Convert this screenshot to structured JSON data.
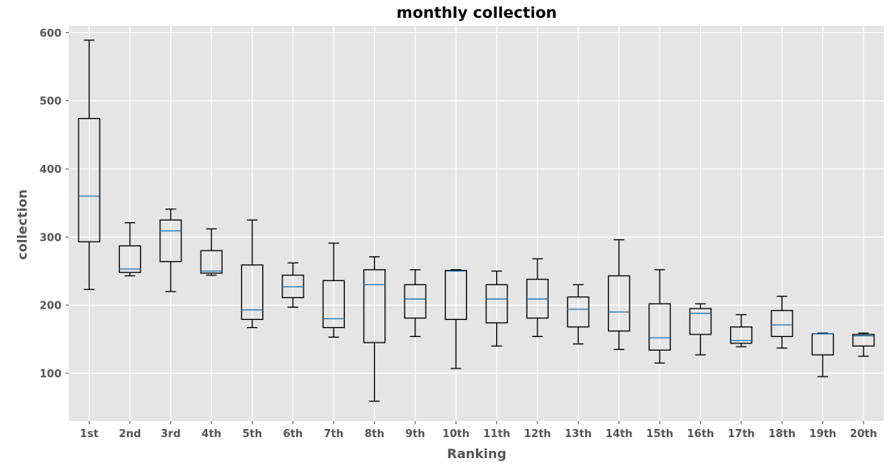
{
  "chart_data": {
    "type": "boxplot",
    "title": "monthly collection",
    "xlabel": "Ranking",
    "ylabel": "collection",
    "ylim": [
      30,
      610
    ],
    "yticks": [
      100,
      200,
      300,
      400,
      500,
      600
    ],
    "grid": true,
    "colors": {
      "background": "#e5e5e5",
      "grid": "#ffffff",
      "box": "#000000",
      "median": "#1f77b4",
      "tick_text": "#555555"
    },
    "categories": [
      "1st",
      "2nd",
      "3rd",
      "4th",
      "5th",
      "6th",
      "7th",
      "8th",
      "9th",
      "10th",
      "11th",
      "12th",
      "13th",
      "14th",
      "15th",
      "16th",
      "17th",
      "18th",
      "19th",
      "20th"
    ],
    "boxes": [
      {
        "whislo": 223,
        "q1": 293,
        "med": 360,
        "q3": 474,
        "whishi": 589
      },
      {
        "whislo": 243,
        "q1": 248,
        "med": 253,
        "q3": 287,
        "whishi": 321
      },
      {
        "whislo": 220,
        "q1": 264,
        "med": 309,
        "q3": 325,
        "whishi": 341
      },
      {
        "whislo": 244,
        "q1": 247,
        "med": 250,
        "q3": 280,
        "whishi": 312
      },
      {
        "whislo": 167,
        "q1": 179,
        "med": 193,
        "q3": 259,
        "whishi": 325
      },
      {
        "whislo": 197,
        "q1": 211,
        "med": 227,
        "q3": 244,
        "whishi": 262
      },
      {
        "whislo": 153,
        "q1": 167,
        "med": 180,
        "q3": 236,
        "whishi": 291
      },
      {
        "whislo": 59,
        "q1": 145,
        "med": 230,
        "q3": 252,
        "whishi": 271
      },
      {
        "whislo": 154,
        "q1": 181,
        "med": 209,
        "q3": 230,
        "whishi": 252
      },
      {
        "whislo": 107,
        "q1": 179,
        "med": 250,
        "q3": 251,
        "whishi": 252
      },
      {
        "whislo": 140,
        "q1": 174,
        "med": 209,
        "q3": 230,
        "whishi": 250
      },
      {
        "whislo": 154,
        "q1": 181,
        "med": 209,
        "q3": 238,
        "whishi": 268
      },
      {
        "whislo": 143,
        "q1": 168,
        "med": 194,
        "q3": 212,
        "whishi": 230
      },
      {
        "whislo": 135,
        "q1": 162,
        "med": 190,
        "q3": 243,
        "whishi": 296
      },
      {
        "whislo": 115,
        "q1": 134,
        "med": 152,
        "q3": 202,
        "whishi": 252
      },
      {
        "whislo": 127,
        "q1": 157,
        "med": 188,
        "q3": 195,
        "whishi": 202
      },
      {
        "whislo": 139,
        "q1": 144,
        "med": 148,
        "q3": 168,
        "whishi": 186
      },
      {
        "whislo": 137,
        "q1": 154,
        "med": 171,
        "q3": 192,
        "whishi": 213
      },
      {
        "whislo": 95,
        "q1": 127,
        "med": 158,
        "q3": 158,
        "whishi": 159
      },
      {
        "whislo": 125,
        "q1": 140,
        "med": 155,
        "q3": 157,
        "whishi": 159
      }
    ]
  }
}
